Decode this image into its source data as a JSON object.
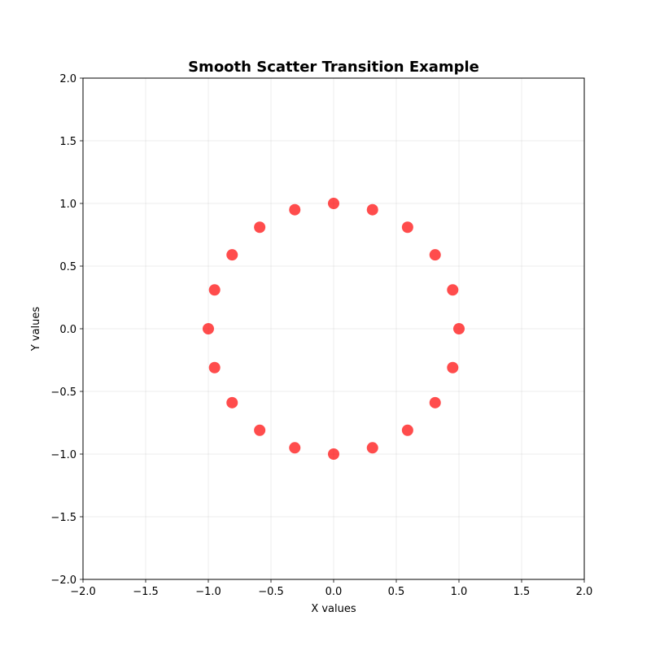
{
  "chart_data": {
    "type": "scatter",
    "title": "Smooth Scatter Transition Example",
    "xlabel": "X values",
    "ylabel": "Y values",
    "xlim": [
      -2.0,
      2.0
    ],
    "ylim": [
      -2.0,
      2.0
    ],
    "x_ticks": [
      -2.0,
      -1.5,
      -1.0,
      -0.5,
      0.0,
      0.5,
      1.0,
      1.5,
      2.0
    ],
    "y_ticks": [
      -2.0,
      -1.5,
      -1.0,
      -0.5,
      0.0,
      0.5,
      1.0,
      1.5,
      2.0
    ],
    "x_tick_labels": [
      "−2.0",
      "−1.5",
      "−1.0",
      "−0.5",
      "0.0",
      "0.5",
      "1.0",
      "1.5",
      "2.0"
    ],
    "y_tick_labels": [
      "−2.0",
      "−1.5",
      "−1.0",
      "−0.5",
      "0.0",
      "0.5",
      "1.0",
      "1.5",
      "2.0"
    ],
    "grid": true,
    "marker_color": "#ff0000",
    "marker_opacity": 0.7,
    "series": [
      {
        "points": [
          {
            "x": 1.0,
            "y": 0.0
          },
          {
            "x": 0.95,
            "y": 0.31
          },
          {
            "x": 0.81,
            "y": 0.59
          },
          {
            "x": 0.59,
            "y": 0.81
          },
          {
            "x": 0.31,
            "y": 0.95
          },
          {
            "x": 0.0,
            "y": 1.0
          },
          {
            "x": -0.31,
            "y": 0.95
          },
          {
            "x": -0.59,
            "y": 0.81
          },
          {
            "x": -0.81,
            "y": 0.59
          },
          {
            "x": -0.95,
            "y": 0.31
          },
          {
            "x": -1.0,
            "y": 0.0
          },
          {
            "x": -0.95,
            "y": -0.31
          },
          {
            "x": -0.81,
            "y": -0.59
          },
          {
            "x": -0.59,
            "y": -0.81
          },
          {
            "x": -0.31,
            "y": -0.95
          },
          {
            "x": 0.0,
            "y": -1.0
          },
          {
            "x": 0.31,
            "y": -0.95
          },
          {
            "x": 0.59,
            "y": -0.81
          },
          {
            "x": 0.81,
            "y": -0.59
          },
          {
            "x": 0.95,
            "y": -0.31
          }
        ]
      }
    ]
  }
}
